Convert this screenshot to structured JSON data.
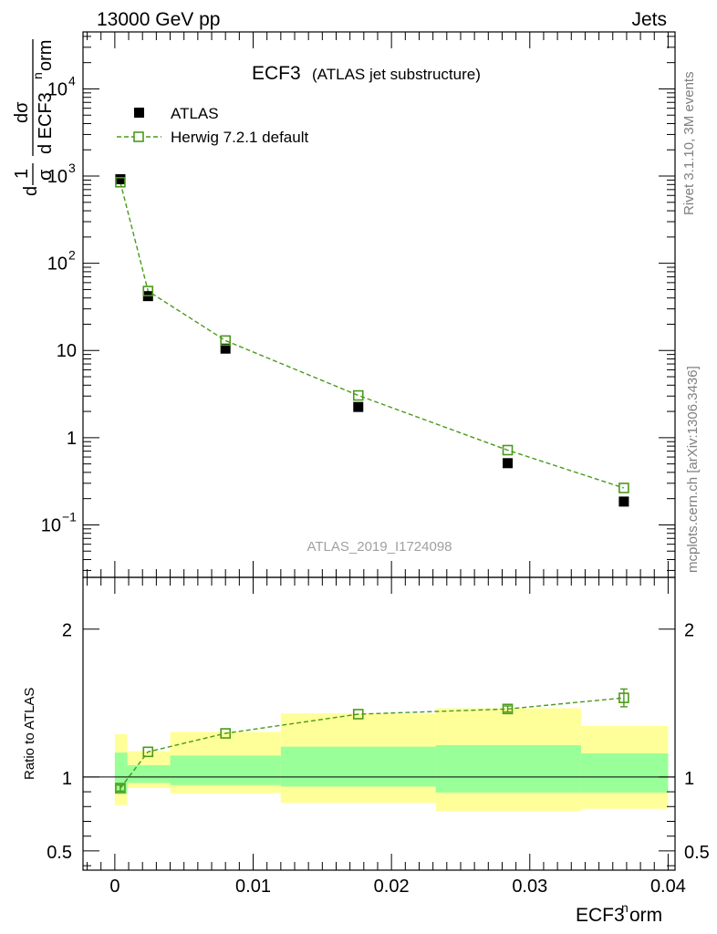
{
  "header": {
    "left": "13000 GeV pp",
    "right": "Jets"
  },
  "side_labels": {
    "rivet": "Rivet 3.1.10,  3M events",
    "mcplots": "mcplots.cern.ch [arXiv:1306.3436]"
  },
  "chart_data": [
    {
      "type": "scatter",
      "panel": "main",
      "title": "ECF3",
      "subtitle": "(ATLAS jet substructure)",
      "watermark": "ATLAS_2019_I1724098",
      "ylabel": {
        "num_top": "dσ",
        "num_bottom": "d ECF3",
        "num_sup": "n",
        "num_tail": "orm",
        "frac_top": "1",
        "frac_bottom": "σ",
        "lead": "d"
      },
      "yscale": "log",
      "ylim": [
        0.025,
        45000
      ],
      "xlim": [
        -0.0023,
        0.0405
      ],
      "yticks": [
        {
          "v": 0.1,
          "base": "10",
          "exp": "−1"
        },
        {
          "v": 1,
          "base": "1",
          "exp": ""
        },
        {
          "v": 10,
          "base": "10",
          "exp": ""
        },
        {
          "v": 100,
          "base": "10",
          "exp": "2"
        },
        {
          "v": 1000,
          "base": "10",
          "exp": "3"
        },
        {
          "v": 10000,
          "base": "10",
          "exp": "4"
        }
      ],
      "legend": {
        "position": "top-left",
        "entries": [
          "ATLAS",
          "Herwig 7.2.1 default"
        ]
      },
      "series": [
        {
          "name": "ATLAS",
          "marker": "filled-square",
          "color": "#000000",
          "x": [
            0.0004,
            0.0024,
            0.008,
            0.0176,
            0.0284,
            0.0368
          ],
          "y": [
            920,
            42,
            10.5,
            2.25,
            0.51,
            0.185
          ]
        },
        {
          "name": "Herwig 7.2.1 default",
          "marker": "open-square",
          "line": "dashed",
          "color": "#4a9a1a",
          "x": [
            0.0004,
            0.0024,
            0.008,
            0.0176,
            0.0284,
            0.0368
          ],
          "y": [
            850,
            48,
            13,
            3.05,
            0.72,
            0.265
          ]
        }
      ]
    },
    {
      "type": "scatter",
      "panel": "ratio",
      "ylabel": "Ratio to ATLAS",
      "xlabel": {
        "base": "ECF3",
        "sup": "n",
        "tail": "orm"
      },
      "ylim": [
        0.37,
        2.35
      ],
      "xlim": [
        -0.0023,
        0.0405
      ],
      "xticks": [
        0,
        0.01,
        0.02,
        0.03,
        0.04
      ],
      "xtick_labels": [
        "0",
        "0.01",
        "0.02",
        "0.03",
        "0.04"
      ],
      "yticks": [
        0.5,
        1,
        2
      ],
      "ytick_labels": [
        "0.5",
        "1",
        "2"
      ],
      "bands": {
        "bins": [
          {
            "x0": 0.0,
            "x1": 0.0009,
            "inner": [
              0.885,
              1.165
            ],
            "outer": [
              0.81,
              1.29
            ]
          },
          {
            "x0": 0.0009,
            "x1": 0.004,
            "inner": [
              0.96,
              1.08
            ],
            "outer": [
              0.925,
              1.175
            ]
          },
          {
            "x0": 0.004,
            "x1": 0.012,
            "inner": [
              0.945,
              1.145
            ],
            "outer": [
              0.89,
              1.305
            ]
          },
          {
            "x0": 0.012,
            "x1": 0.0232,
            "inner": [
              0.935,
              1.205
            ],
            "outer": [
              0.825,
              1.43
            ]
          },
          {
            "x0": 0.0232,
            "x1": 0.0337,
            "inner": [
              0.895,
              1.215
            ],
            "outer": [
              0.77,
              1.465
            ]
          },
          {
            "x0": 0.0337,
            "x1": 0.04,
            "inner": [
              0.895,
              1.16
            ],
            "outer": [
              0.785,
              1.345
            ]
          }
        ],
        "inner_color": "#99ff99",
        "outer_color": "#ffff99"
      },
      "series": [
        {
          "name": "Herwig 7.2.1 default / ATLAS",
          "marker": "open-square",
          "line": "dashed",
          "color": "#4a9a1a",
          "x": [
            0.0004,
            0.0024,
            0.008,
            0.0176,
            0.0284,
            0.0368
          ],
          "y": [
            0.925,
            1.17,
            1.295,
            1.425,
            1.46,
            1.535
          ],
          "err": [
            0.02,
            0.01,
            0.01,
            0.01,
            0.02,
            0.06
          ]
        }
      ]
    }
  ]
}
